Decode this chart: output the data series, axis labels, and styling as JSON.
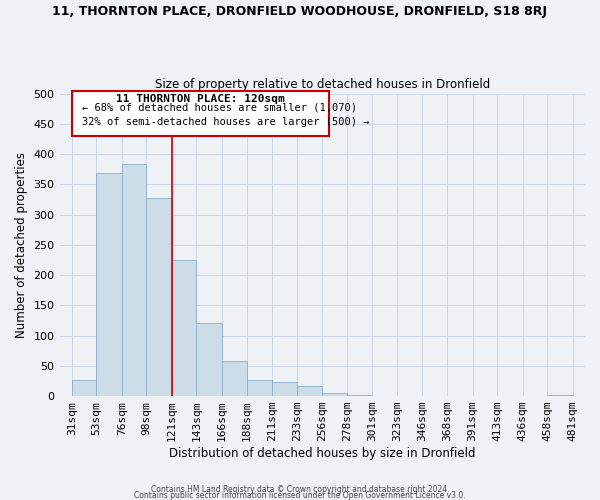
{
  "title_main": "11, THORNTON PLACE, DRONFIELD WOODHOUSE, DRONFIELD, S18 8RJ",
  "title_sub": "Size of property relative to detached houses in Dronfield",
  "xlabel": "Distribution of detached houses by size in Dronfield",
  "ylabel": "Number of detached properties",
  "bar_left_edges": [
    31,
    53,
    76,
    98,
    121,
    143,
    166,
    188,
    211,
    233,
    256,
    278,
    301,
    323,
    346,
    368,
    391,
    413,
    436,
    458
  ],
  "bar_widths": [
    22,
    23,
    22,
    23,
    22,
    23,
    22,
    23,
    22,
    23,
    22,
    23,
    22,
    23,
    22,
    23,
    22,
    23,
    22,
    23
  ],
  "bar_heights": [
    27,
    368,
    383,
    327,
    225,
    121,
    58,
    26,
    23,
    17,
    5,
    1,
    0,
    0,
    0,
    0,
    0,
    0,
    0,
    2
  ],
  "bar_color": "#ccdde8",
  "bar_edge_color": "#8ab0c8",
  "tick_labels": [
    "31sqm",
    "53sqm",
    "76sqm",
    "98sqm",
    "121sqm",
    "143sqm",
    "166sqm",
    "188sqm",
    "211sqm",
    "233sqm",
    "256sqm",
    "278sqm",
    "301sqm",
    "323sqm",
    "346sqm",
    "368sqm",
    "391sqm",
    "413sqm",
    "436sqm",
    "458sqm",
    "481sqm"
  ],
  "tick_positions": [
    31,
    53,
    76,
    98,
    121,
    143,
    166,
    188,
    211,
    233,
    256,
    278,
    301,
    323,
    346,
    368,
    391,
    413,
    436,
    458,
    481
  ],
  "ylim": [
    0,
    500
  ],
  "xlim": [
    20,
    492
  ],
  "property_line_x": 121,
  "property_line_color": "#cc0000",
  "annotation_title": "11 THORNTON PLACE: 120sqm",
  "annotation_line1": "← 68% of detached houses are smaller (1,070)",
  "annotation_line2": "32% of semi-detached houses are larger (500) →",
  "annotation_box_color": "#ffffff",
  "annotation_border_color": "#cc0000",
  "grid_color": "#ccd8e4",
  "bg_color": "#eef2f7",
  "footer_line1": "Contains HM Land Registry data © Crown copyright and database right 2024.",
  "footer_line2": "Contains public sector information licensed under the Open Government Licence v3.0."
}
